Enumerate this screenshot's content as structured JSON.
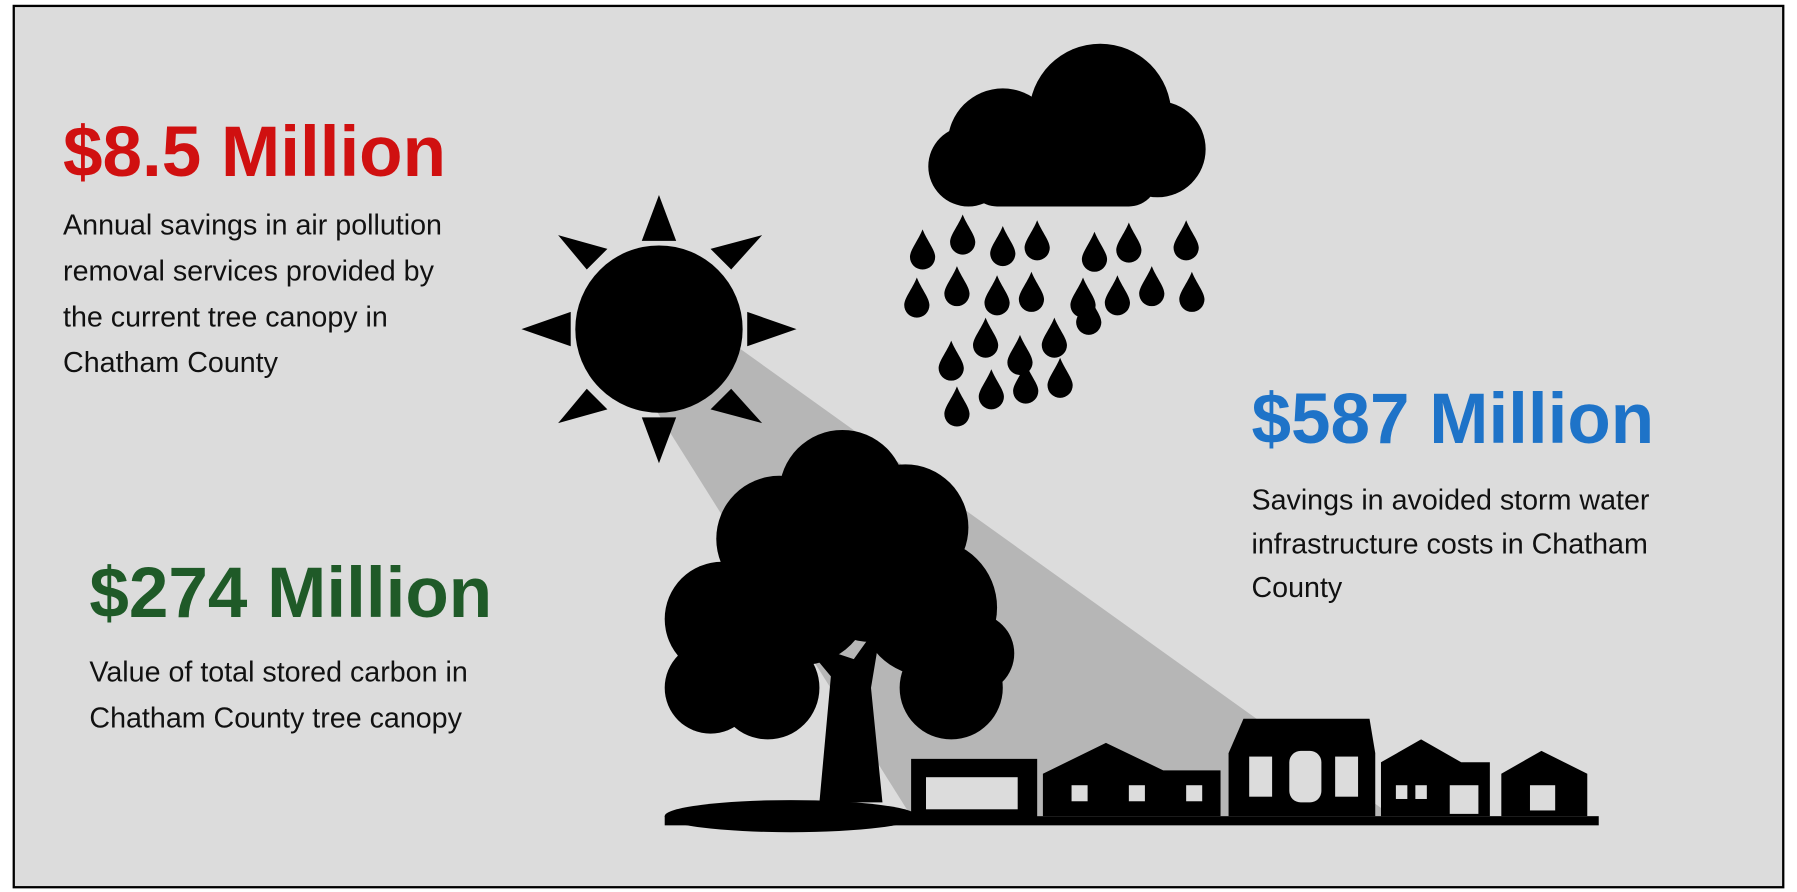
{
  "stats": [
    {
      "headline": "$8.5 Million",
      "lines": [
        "Annual savings in air pollution",
        "removal services provided by",
        "the current tree canopy in",
        "Chatham County"
      ]
    },
    {
      "headline": "$587 Million",
      "lines": [
        "Savings in avoided storm water",
        "infrastructure costs in Chatham",
        "County"
      ]
    },
    {
      "headline": "$274 Million",
      "lines": [
        "Value of total stored carbon in",
        "Chatham County tree canopy"
      ]
    }
  ]
}
